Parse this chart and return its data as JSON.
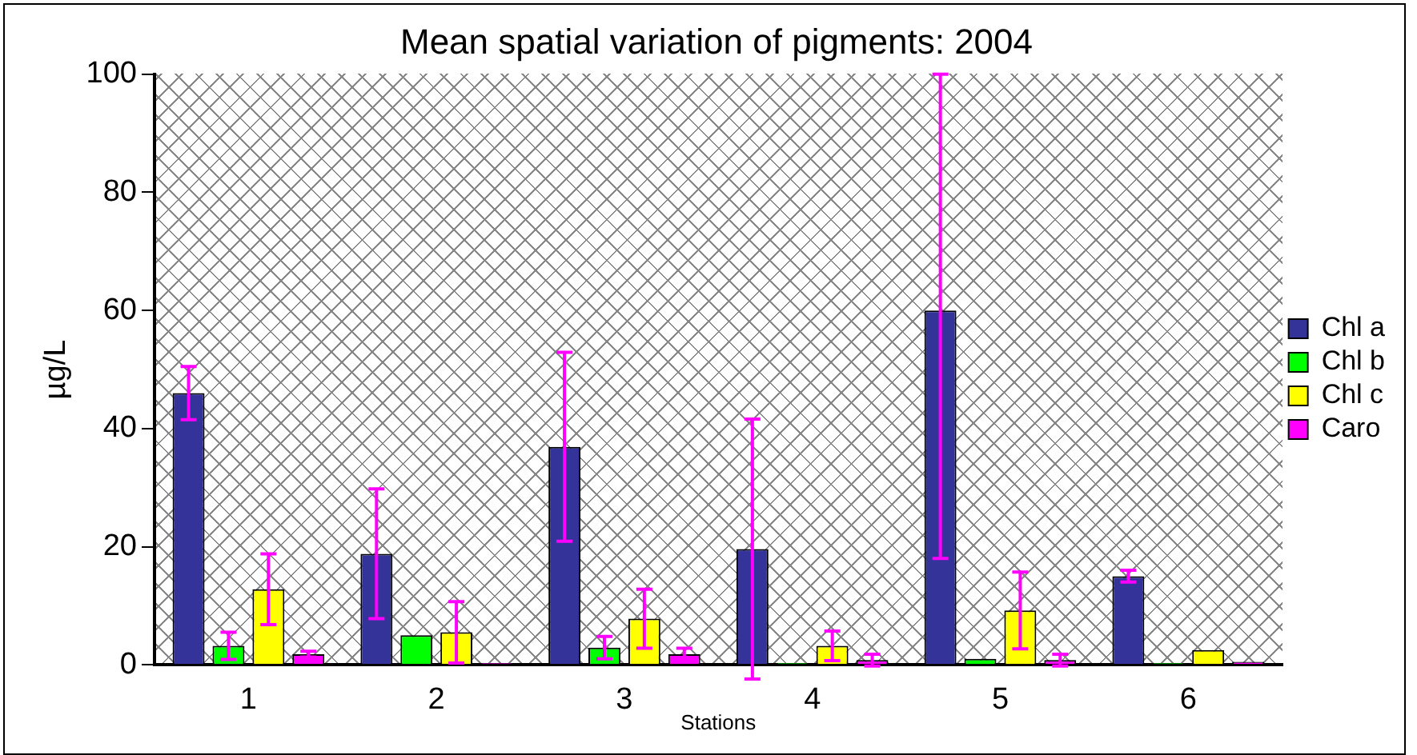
{
  "chart_data": {
    "type": "bar",
    "title": "Mean spatial variation of pigments: 2004",
    "xlabel": "Stations",
    "ylabel": "µg/L",
    "categories": [
      "1",
      "2",
      "3",
      "4",
      "5",
      "6"
    ],
    "series": [
      {
        "name": "Chl a",
        "color": "#333399",
        "values": [
          46,
          18.8,
          36.9,
          19.6,
          60,
          15
        ],
        "errors": [
          4.5,
          11,
          16,
          22,
          [
            18,
            100
          ],
          1
        ]
      },
      {
        "name": "Chl b",
        "color": "#00ff00",
        "values": [
          3.2,
          5,
          2.9,
          0.3,
          1,
          0.3
        ],
        "errors": [
          2.3,
          null,
          1.9,
          null,
          null,
          null
        ]
      },
      {
        "name": "Chl c",
        "color": "#ffff00",
        "values": [
          12.8,
          5.5,
          7.8,
          3.2,
          9.2,
          2.5
        ],
        "errors": [
          6,
          5.2,
          5,
          2.5,
          6.5,
          null
        ]
      },
      {
        "name": "Caro",
        "color": "#ff00ff",
        "values": [
          1.8,
          0.3,
          1.8,
          0.8,
          0.8,
          0.5
        ],
        "errors": [
          0.5,
          null,
          1,
          1,
          1,
          null
        ]
      }
    ],
    "ylim": [
      0,
      100
    ],
    "yticks": [
      0,
      20,
      40,
      60,
      80,
      100
    ],
    "grid": false,
    "legend": "right"
  }
}
